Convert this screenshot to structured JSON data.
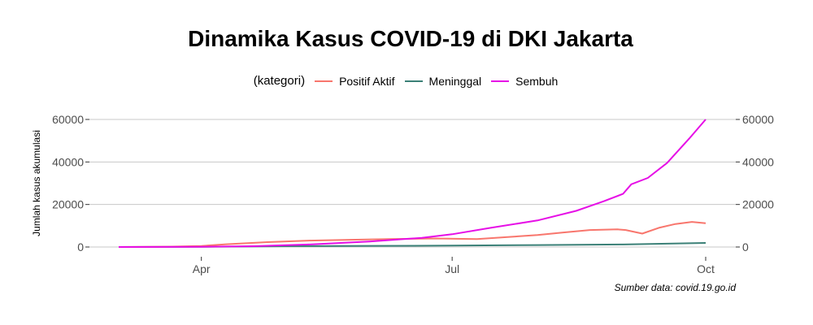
{
  "chart_data": {
    "type": "line",
    "title": "Dinamika Kasus COVID-19 di DKI Jakarta",
    "ylabel": "Jumlah kasus akumulasi",
    "legend_title": "(kategori)",
    "legend_position": "top",
    "caption": "Sumber data: covid.19.go.id",
    "x_ticks": [
      {
        "label": "Apr",
        "date": "2020-04-01"
      },
      {
        "label": "Jul",
        "date": "2020-07-01"
      },
      {
        "label": "Oct",
        "date": "2020-10-01"
      }
    ],
    "y_ticks": [
      0,
      20000,
      40000,
      60000
    ],
    "xlim": [
      "2020-03-02",
      "2020-10-01"
    ],
    "ylim": [
      0,
      60000
    ],
    "grid": "horizontal",
    "series": [
      {
        "name": "Positif Aktif",
        "color": "#f8766d",
        "points": [
          [
            "2020-03-02",
            0
          ],
          [
            "2020-03-20",
            150
          ],
          [
            "2020-04-01",
            500
          ],
          [
            "2020-04-10",
            1300
          ],
          [
            "2020-04-25",
            2300
          ],
          [
            "2020-05-10",
            3000
          ],
          [
            "2020-05-25",
            3400
          ],
          [
            "2020-06-10",
            3800
          ],
          [
            "2020-06-25",
            4000
          ],
          [
            "2020-07-10",
            3700
          ],
          [
            "2020-07-20",
            4600
          ],
          [
            "2020-08-01",
            5600
          ],
          [
            "2020-08-10",
            6800
          ],
          [
            "2020-08-20",
            8000
          ],
          [
            "2020-08-30",
            8300
          ],
          [
            "2020-09-02",
            8000
          ],
          [
            "2020-09-08",
            6300
          ],
          [
            "2020-09-14",
            9000
          ],
          [
            "2020-09-20",
            10800
          ],
          [
            "2020-09-26",
            11800
          ],
          [
            "2020-10-01",
            11200
          ]
        ]
      },
      {
        "name": "Meninggal",
        "color": "#3b8077",
        "points": [
          [
            "2020-03-02",
            0
          ],
          [
            "2020-04-01",
            90
          ],
          [
            "2020-05-01",
            400
          ],
          [
            "2020-06-01",
            550
          ],
          [
            "2020-07-01",
            650
          ],
          [
            "2020-08-01",
            900
          ],
          [
            "2020-09-01",
            1200
          ],
          [
            "2020-10-01",
            1900
          ]
        ]
      },
      {
        "name": "Sembuh",
        "color": "#e60ee6",
        "points": [
          [
            "2020-03-02",
            0
          ],
          [
            "2020-04-01",
            100
          ],
          [
            "2020-04-20",
            400
          ],
          [
            "2020-05-10",
            1200
          ],
          [
            "2020-06-01",
            2600
          ],
          [
            "2020-06-20",
            4300
          ],
          [
            "2020-07-01",
            6000
          ],
          [
            "2020-07-15",
            9000
          ],
          [
            "2020-08-01",
            12500
          ],
          [
            "2020-08-15",
            17000
          ],
          [
            "2020-08-25",
            21500
          ],
          [
            "2020-09-01",
            25000
          ],
          [
            "2020-09-04",
            29500
          ],
          [
            "2020-09-10",
            32500
          ],
          [
            "2020-09-17",
            39500
          ],
          [
            "2020-09-25",
            51000
          ],
          [
            "2020-10-01",
            60000
          ]
        ]
      }
    ]
  }
}
